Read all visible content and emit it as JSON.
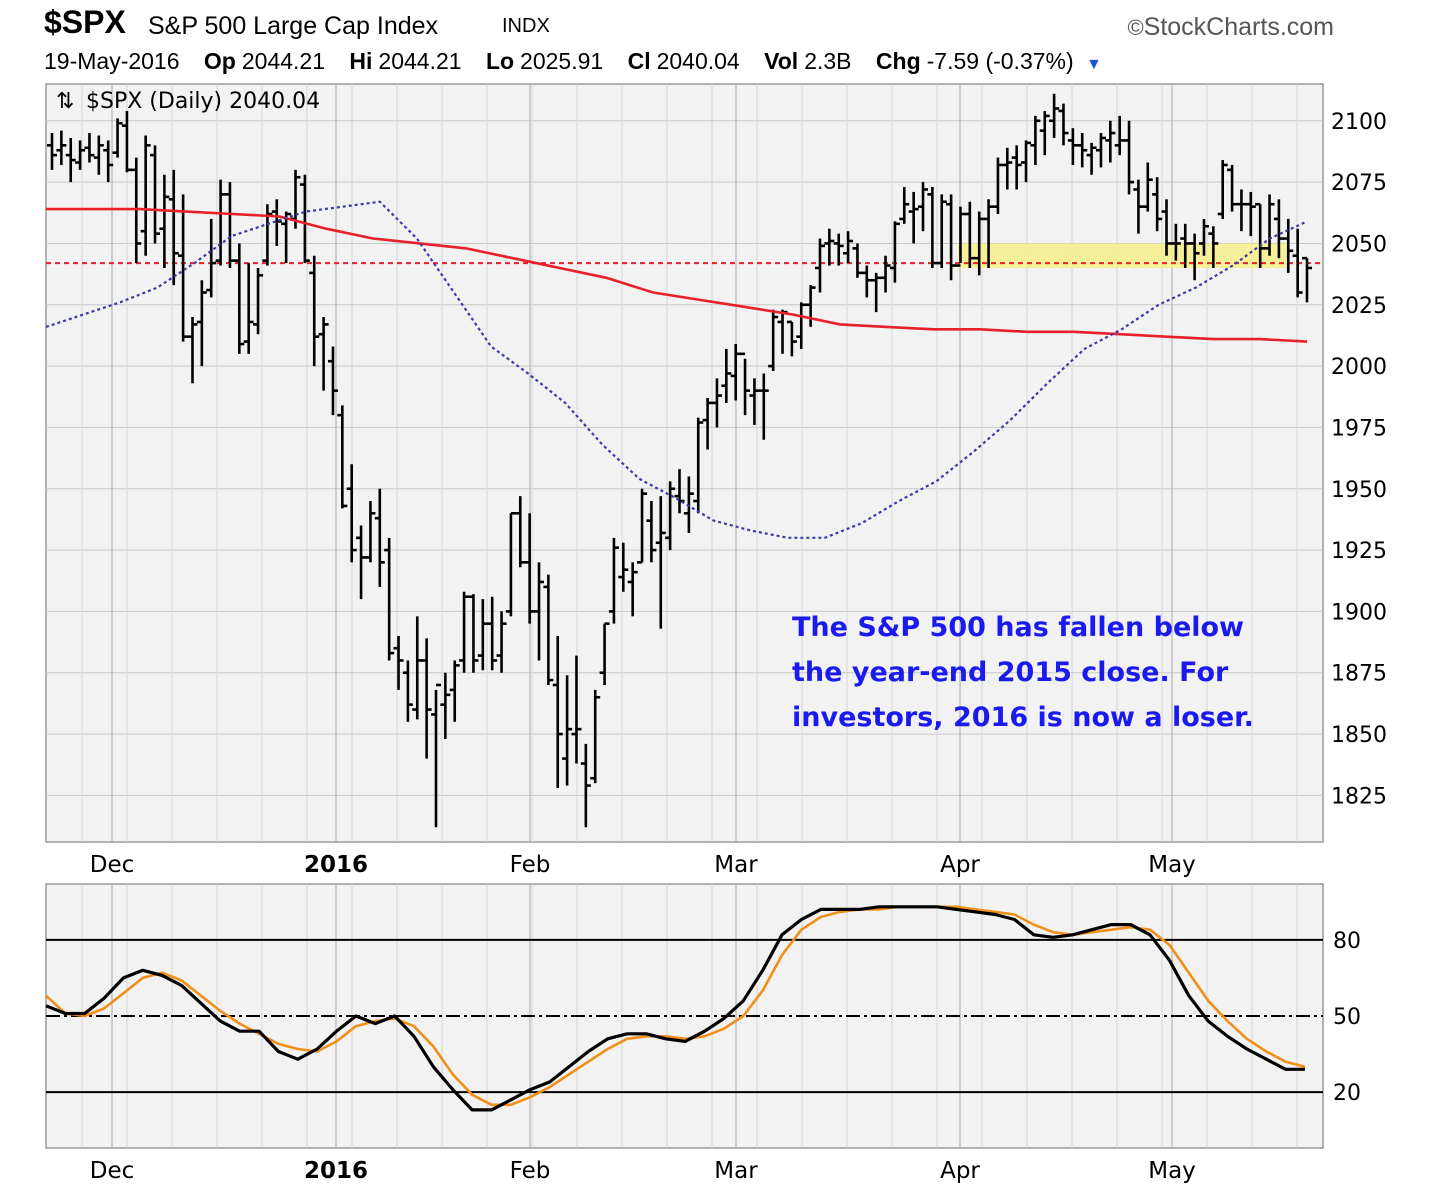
{
  "header": {
    "symbol": "$SPX",
    "name": "S&P 500 Large Cap Index",
    "exchange": "INDX",
    "brand": "StockCharts.com",
    "brand_mark": "©"
  },
  "quote": {
    "date": "19-May-2016",
    "open_label": "Op",
    "open": "2044.21",
    "high_label": "Hi",
    "high": "2044.21",
    "low_label": "Lo",
    "low": "2025.91",
    "close_label": "Cl",
    "close": "2040.04",
    "vol_label": "Vol",
    "vol": "2.3B",
    "chg_label": "Chg",
    "chg": "-7.59 (-0.37%)"
  },
  "colors": {
    "ma_long": "#e8202a",
    "ma_short": "#3a3aa8",
    "close_line": "#e8202a",
    "highlight": "#f6f08a",
    "annotation": "#1a1aee",
    "fast_line": "#000000",
    "slow_line": "#f0901a"
  },
  "chart_data": [
    {
      "type": "ohlc",
      "title": "$SPX (Daily) 2040.04",
      "x_labels": [
        "Dec",
        "2016",
        "Feb",
        "Mar",
        "Apr",
        "May"
      ],
      "y_ticks": [
        1825,
        1850,
        1875,
        1900,
        1925,
        1950,
        1975,
        2000,
        2025,
        2050,
        2075,
        2100
      ],
      "ylim": [
        1806,
        2115
      ],
      "y_axis_side": "right",
      "grid": true,
      "reference_line": 2042,
      "highlight_band": [
        2040,
        2050
      ],
      "annotation": [
        "The S&P 500 has fallen below",
        "the year-end 2015 close. For",
        "investors, 2016 is now a loser."
      ],
      "bars": [
        {
          "h": 2095,
          "l": 2080,
          "o": 2090,
          "c": 2086
        },
        {
          "h": 2096,
          "l": 2082,
          "o": 2088,
          "c": 2090
        },
        {
          "h": 2093,
          "l": 2075,
          "o": 2086,
          "c": 2084
        },
        {
          "h": 2092,
          "l": 2080,
          "o": 2083,
          "c": 2088
        },
        {
          "h": 2095,
          "l": 2083,
          "o": 2089,
          "c": 2086
        },
        {
          "h": 2094,
          "l": 2078,
          "o": 2085,
          "c": 2090
        },
        {
          "h": 2092,
          "l": 2075,
          "o": 2088,
          "c": 2082
        },
        {
          "h": 2101,
          "l": 2085,
          "o": 2087,
          "c": 2099
        },
        {
          "h": 2104,
          "l": 2079,
          "o": 2098,
          "c": 2080
        },
        {
          "h": 2085,
          "l": 2042,
          "o": 2080,
          "c": 2050
        },
        {
          "h": 2094,
          "l": 2045,
          "o": 2055,
          "c": 2090
        },
        {
          "h": 2090,
          "l": 2050,
          "o": 2086,
          "c": 2054
        },
        {
          "h": 2078,
          "l": 2040,
          "o": 2056,
          "c": 2069
        },
        {
          "h": 2080,
          "l": 2033,
          "o": 2068,
          "c": 2046
        },
        {
          "h": 2070,
          "l": 2010,
          "o": 2045,
          "c": 2012
        },
        {
          "h": 2020,
          "l": 1993,
          "o": 2012,
          "c": 2017
        },
        {
          "h": 2035,
          "l": 2000,
          "o": 2018,
          "c": 2030
        },
        {
          "h": 2060,
          "l": 2028,
          "o": 2031,
          "c": 2042
        },
        {
          "h": 2076,
          "l": 2041,
          "o": 2043,
          "c": 2070
        },
        {
          "h": 2075,
          "l": 2040,
          "o": 2070,
          "c": 2043
        },
        {
          "h": 2050,
          "l": 2005,
          "o": 2043,
          "c": 2009
        },
        {
          "h": 2042,
          "l": 2005,
          "o": 2010,
          "c": 2018
        },
        {
          "h": 2040,
          "l": 2013,
          "o": 2017,
          "c": 2037
        },
        {
          "h": 2066,
          "l": 2041,
          "o": 2043,
          "c": 2062
        },
        {
          "h": 2068,
          "l": 2049,
          "o": 2063,
          "c": 2059
        },
        {
          "h": 2063,
          "l": 2042,
          "o": 2058,
          "c": 2062
        },
        {
          "h": 2080,
          "l": 2056,
          "o": 2060,
          "c": 2077
        },
        {
          "h": 2078,
          "l": 2042,
          "o": 2074,
          "c": 2043
        },
        {
          "h": 2045,
          "l": 2000,
          "o": 2038,
          "c": 2012
        },
        {
          "h": 2020,
          "l": 1990,
          "o": 2013,
          "c": 2017
        },
        {
          "h": 2008,
          "l": 1980,
          "o": 2002,
          "c": 1990
        },
        {
          "h": 1984,
          "l": 1942,
          "o": 1980,
          "c": 1943
        },
        {
          "h": 1960,
          "l": 1920,
          "o": 1950,
          "c": 1925
        },
        {
          "h": 1935,
          "l": 1905,
          "o": 1930,
          "c": 1922
        },
        {
          "h": 1945,
          "l": 1920,
          "o": 1922,
          "c": 1940
        },
        {
          "h": 1950,
          "l": 1910,
          "o": 1938,
          "c": 1920
        },
        {
          "h": 1930,
          "l": 1880,
          "o": 1925,
          "c": 1883
        },
        {
          "h": 1890,
          "l": 1868,
          "o": 1885,
          "c": 1880
        },
        {
          "h": 1880,
          "l": 1855,
          "o": 1875,
          "c": 1862
        },
        {
          "h": 1898,
          "l": 1856,
          "o": 1860,
          "c": 1880
        },
        {
          "h": 1889,
          "l": 1840,
          "o": 1880,
          "c": 1860
        },
        {
          "h": 1868,
          "l": 1812,
          "o": 1858,
          "c": 1870
        },
        {
          "h": 1875,
          "l": 1848,
          "o": 1862,
          "c": 1866
        },
        {
          "h": 1880,
          "l": 1855,
          "o": 1868,
          "c": 1878
        },
        {
          "h": 1908,
          "l": 1875,
          "o": 1880,
          "c": 1906
        },
        {
          "h": 1907,
          "l": 1875,
          "o": 1906,
          "c": 1880
        },
        {
          "h": 1905,
          "l": 1876,
          "o": 1882,
          "c": 1895
        },
        {
          "h": 1906,
          "l": 1876,
          "o": 1895,
          "c": 1880
        },
        {
          "h": 1900,
          "l": 1875,
          "o": 1882,
          "c": 1895
        },
        {
          "h": 1940,
          "l": 1898,
          "o": 1900,
          "c": 1940
        },
        {
          "h": 1947,
          "l": 1918,
          "o": 1940,
          "c": 1920
        },
        {
          "h": 1940,
          "l": 1895,
          "o": 1920,
          "c": 1900
        },
        {
          "h": 1920,
          "l": 1880,
          "o": 1900,
          "c": 1912
        },
        {
          "h": 1915,
          "l": 1870,
          "o": 1910,
          "c": 1872
        },
        {
          "h": 1890,
          "l": 1828,
          "o": 1870,
          "c": 1850
        },
        {
          "h": 1874,
          "l": 1829,
          "o": 1840,
          "c": 1852
        },
        {
          "h": 1882,
          "l": 1838,
          "o": 1850,
          "c": 1852
        },
        {
          "h": 1846,
          "l": 1812,
          "o": 1838,
          "c": 1829
        },
        {
          "h": 1868,
          "l": 1830,
          "o": 1832,
          "c": 1865
        },
        {
          "h": 1895,
          "l": 1870,
          "o": 1875,
          "c": 1895
        },
        {
          "h": 1930,
          "l": 1895,
          "o": 1900,
          "c": 1926
        },
        {
          "h": 1928,
          "l": 1908,
          "o": 1914,
          "c": 1917
        },
        {
          "h": 1920,
          "l": 1898,
          "o": 1912,
          "c": 1916
        },
        {
          "h": 1950,
          "l": 1920,
          "o": 1920,
          "c": 1948
        },
        {
          "h": 1945,
          "l": 1920,
          "o": 1937,
          "c": 1925
        },
        {
          "h": 1947,
          "l": 1893,
          "o": 1928,
          "c": 1932
        },
        {
          "h": 1953,
          "l": 1925,
          "o": 1930,
          "c": 1950
        },
        {
          "h": 1958,
          "l": 1940,
          "o": 1947,
          "c": 1945
        },
        {
          "h": 1955,
          "l": 1932,
          "o": 1940,
          "c": 1948
        },
        {
          "h": 1979,
          "l": 1940,
          "o": 1945,
          "c": 1977
        },
        {
          "h": 1987,
          "l": 1966,
          "o": 1978,
          "c": 1985
        },
        {
          "h": 1995,
          "l": 1975,
          "o": 1985,
          "c": 1988
        },
        {
          "h": 2007,
          "l": 1985,
          "o": 1992,
          "c": 1997
        },
        {
          "h": 2009,
          "l": 1986,
          "o": 1996,
          "c": 2005
        },
        {
          "h": 2003,
          "l": 1980,
          "o": 2005,
          "c": 1990
        },
        {
          "h": 1995,
          "l": 1976,
          "o": 1988,
          "c": 1990
        },
        {
          "h": 1997,
          "l": 1970,
          "o": 1990,
          "c": 1990
        },
        {
          "h": 2023,
          "l": 1998,
          "o": 2000,
          "c": 2020
        },
        {
          "h": 2023,
          "l": 2005,
          "o": 2018,
          "c": 2022
        },
        {
          "h": 2018,
          "l": 2004,
          "o": 2018,
          "c": 2010
        },
        {
          "h": 2026,
          "l": 2007,
          "o": 2012,
          "c": 2025
        },
        {
          "h": 2033,
          "l": 2016,
          "o": 2025,
          "c": 2032
        },
        {
          "h": 2052,
          "l": 2030,
          "o": 2040,
          "c": 2049
        },
        {
          "h": 2056,
          "l": 2041,
          "o": 2050,
          "c": 2051
        },
        {
          "h": 2054,
          "l": 2041,
          "o": 2050,
          "c": 2049
        },
        {
          "h": 2055,
          "l": 2042,
          "o": 2046,
          "c": 2051
        },
        {
          "h": 2050,
          "l": 2036,
          "o": 2048,
          "c": 2038
        },
        {
          "h": 2041,
          "l": 2028,
          "o": 2038,
          "c": 2035
        },
        {
          "h": 2038,
          "l": 2022,
          "o": 2035,
          "c": 2036
        },
        {
          "h": 2045,
          "l": 2030,
          "o": 2036,
          "c": 2041
        },
        {
          "h": 2059,
          "l": 2034,
          "o": 2040,
          "c": 2058
        },
        {
          "h": 2073,
          "l": 2058,
          "o": 2060,
          "c": 2066
        },
        {
          "h": 2071,
          "l": 2050,
          "o": 2063,
          "c": 2064
        },
        {
          "h": 2075,
          "l": 2055,
          "o": 2065,
          "c": 2072
        },
        {
          "h": 2073,
          "l": 2040,
          "o": 2070,
          "c": 2042
        },
        {
          "h": 2070,
          "l": 2040,
          "o": 2042,
          "c": 2067
        },
        {
          "h": 2070,
          "l": 2035,
          "o": 2066,
          "c": 2041
        },
        {
          "h": 2065,
          "l": 2042,
          "o": 2041,
          "c": 2062
        },
        {
          "h": 2067,
          "l": 2040,
          "o": 2062,
          "c": 2044
        },
        {
          "h": 2063,
          "l": 2037,
          "o": 2044,
          "c": 2060
        },
        {
          "h": 2068,
          "l": 2040,
          "o": 2060,
          "c": 2065
        },
        {
          "h": 2085,
          "l": 2062,
          "o": 2065,
          "c": 2082
        },
        {
          "h": 2089,
          "l": 2072,
          "o": 2082,
          "c": 2083
        },
        {
          "h": 2090,
          "l": 2072,
          "o": 2085,
          "c": 2082
        },
        {
          "h": 2092,
          "l": 2075,
          "o": 2083,
          "c": 2091
        },
        {
          "h": 2102,
          "l": 2082,
          "o": 2090,
          "c": 2100
        },
        {
          "h": 2104,
          "l": 2086,
          "o": 2096,
          "c": 2102
        },
        {
          "h": 2111,
          "l": 2093,
          "o": 2100,
          "c": 2105
        },
        {
          "h": 2107,
          "l": 2090,
          "o": 2104,
          "c": 2095
        },
        {
          "h": 2097,
          "l": 2082,
          "o": 2092,
          "c": 2090
        },
        {
          "h": 2095,
          "l": 2081,
          "o": 2090,
          "c": 2088
        },
        {
          "h": 2091,
          "l": 2078,
          "o": 2086,
          "c": 2089
        },
        {
          "h": 2095,
          "l": 2081,
          "o": 2088,
          "c": 2093
        },
        {
          "h": 2100,
          "l": 2083,
          "o": 2092,
          "c": 2095
        },
        {
          "h": 2102,
          "l": 2086,
          "o": 2090,
          "c": 2092
        },
        {
          "h": 2100,
          "l": 2070,
          "o": 2092,
          "c": 2075
        },
        {
          "h": 2076,
          "l": 2054,
          "o": 2072,
          "c": 2065
        },
        {
          "h": 2083,
          "l": 2063,
          "o": 2065,
          "c": 2076
        },
        {
          "h": 2077,
          "l": 2055,
          "o": 2070,
          "c": 2060
        },
        {
          "h": 2068,
          "l": 2045,
          "o": 2063,
          "c": 2050
        },
        {
          "h": 2058,
          "l": 2043,
          "o": 2050,
          "c": 2050
        },
        {
          "h": 2058,
          "l": 2040,
          "o": 2052,
          "c": 2050
        },
        {
          "h": 2054,
          "l": 2035,
          "o": 2050,
          "c": 2046
        },
        {
          "h": 2060,
          "l": 2045,
          "o": 2050,
          "c": 2057
        },
        {
          "h": 2057,
          "l": 2040,
          "o": 2054,
          "c": 2050
        },
        {
          "h": 2084,
          "l": 2060,
          "o": 2062,
          "c": 2082
        },
        {
          "h": 2082,
          "l": 2063,
          "o": 2080,
          "c": 2066
        },
        {
          "h": 2072,
          "l": 2055,
          "o": 2066,
          "c": 2066
        },
        {
          "h": 2071,
          "l": 2053,
          "o": 2066,
          "c": 2065
        },
        {
          "h": 2066,
          "l": 2040,
          "o": 2066,
          "c": 2048
        },
        {
          "h": 2070,
          "l": 2045,
          "o": 2048,
          "c": 2066
        },
        {
          "h": 2068,
          "l": 2044,
          "o": 2060,
          "c": 2052
        },
        {
          "h": 2060,
          "l": 2038,
          "o": 2052,
          "c": 2047
        },
        {
          "h": 2056,
          "l": 2028,
          "o": 2045,
          "c": 2030
        },
        {
          "h": 2044,
          "l": 2026,
          "o": 2044,
          "c": 2040
        }
      ],
      "ma_long": [
        2064,
        2064,
        2064,
        2063,
        2062,
        2061,
        2056,
        2052,
        2050,
        2048,
        2044,
        2040,
        2036,
        2030,
        2027,
        2024,
        2021,
        2017,
        2016,
        2015,
        2015,
        2014,
        2014,
        2013,
        2012,
        2011,
        2011,
        2010
      ],
      "ma_short": [
        2016,
        2021,
        2026,
        2032,
        2042,
        2053,
        2058,
        2063,
        2065,
        2067,
        2052,
        2030,
        2008,
        1997,
        1985,
        1968,
        1954,
        1946,
        1937,
        1933,
        1930,
        1930,
        1936,
        1945,
        1953,
        1965,
        1978,
        1993,
        2007,
        2015,
        2025,
        2032,
        2041,
        2052,
        2059
      ],
      "ma_short_label_hidden": true
    },
    {
      "type": "line",
      "x_labels": [
        "Dec",
        "2016",
        "Feb",
        "Mar",
        "Apr",
        "May"
      ],
      "y_ticks": [
        20,
        50,
        80
      ],
      "ylim": [
        -2,
        102
      ],
      "reference_lines": [
        20,
        50,
        80
      ],
      "series": [
        {
          "values": [
            54,
            51,
            51,
            57,
            65,
            68,
            66,
            62,
            55,
            48,
            44,
            44,
            36,
            33,
            37,
            44,
            50,
            47,
            50,
            42,
            30,
            21,
            13,
            13,
            17,
            21,
            24,
            30,
            36,
            41,
            43,
            43,
            41,
            40,
            44,
            49,
            56,
            68,
            82,
            88,
            92,
            92,
            92,
            93,
            93,
            93,
            93,
            92,
            91,
            90,
            88,
            82,
            81,
            82,
            84,
            86,
            86,
            82,
            72,
            58,
            48,
            42,
            37,
            33,
            29,
            29
          ]
        },
        {
          "values": [
            58,
            51,
            50,
            53,
            59,
            65,
            67,
            64,
            58,
            52,
            47,
            43,
            39,
            37,
            36,
            40,
            46,
            48,
            49,
            46,
            38,
            27,
            19,
            15,
            15,
            18,
            22,
            27,
            32,
            37,
            41,
            42,
            42,
            41,
            42,
            45,
            50,
            60,
            74,
            84,
            89,
            91,
            92,
            92,
            93,
            93,
            93,
            93,
            92,
            91,
            90,
            86,
            83,
            82,
            83,
            84,
            85,
            84,
            78,
            67,
            56,
            48,
            41,
            36,
            32,
            30
          ]
        }
      ]
    }
  ]
}
